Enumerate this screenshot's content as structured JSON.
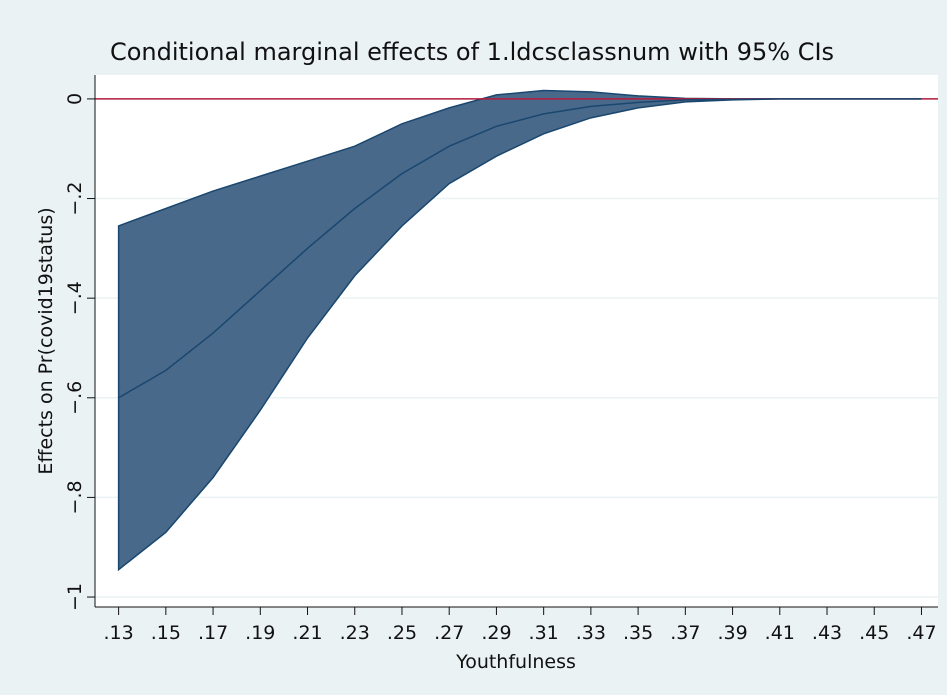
{
  "chart_data": {
    "type": "line",
    "title": "Conditional marginal effects of 1.ldcsclassnum with 95% CIs",
    "xlabel": "Youthfulness",
    "ylabel": "Effects on Pr(covid19status)",
    "x": [
      0.13,
      0.15,
      0.17,
      0.19,
      0.21,
      0.23,
      0.25,
      0.27,
      0.29,
      0.31,
      0.33,
      0.35,
      0.37,
      0.39,
      0.41,
      0.43,
      0.45,
      0.47
    ],
    "values": [
      -0.6,
      -0.545,
      -0.47,
      -0.385,
      -0.3,
      -0.22,
      -0.15,
      -0.095,
      -0.055,
      -0.03,
      -0.015,
      -0.007,
      -0.002,
      -0.001,
      0,
      0,
      0,
      0
    ],
    "upper": [
      -0.255,
      -0.22,
      -0.185,
      -0.155,
      -0.125,
      -0.095,
      -0.05,
      -0.018,
      0.008,
      0.017,
      0.014,
      0.006,
      0.001,
      0,
      0,
      0,
      0,
      0
    ],
    "lower": [
      -0.945,
      -0.87,
      -0.76,
      -0.625,
      -0.48,
      -0.355,
      -0.255,
      -0.17,
      -0.115,
      -0.07,
      -0.038,
      -0.018,
      -0.006,
      -0.002,
      0,
      0,
      0,
      0
    ],
    "color": "#1a476f",
    "band_color": "#49698a",
    "hline": 0,
    "hline_color": "#b31b3c",
    "xlim": [
      0.12,
      0.477
    ],
    "ylim": [
      -1.02,
      0.048
    ],
    "xticks": [
      {
        "value": 0.13,
        "label": ".13"
      },
      {
        "value": 0.15,
        "label": ".15"
      },
      {
        "value": 0.17,
        "label": ".17"
      },
      {
        "value": 0.19,
        "label": ".19"
      },
      {
        "value": 0.21,
        "label": ".21"
      },
      {
        "value": 0.23,
        "label": ".23"
      },
      {
        "value": 0.25,
        "label": ".25"
      },
      {
        "value": 0.27,
        "label": ".27"
      },
      {
        "value": 0.29,
        "label": ".29"
      },
      {
        "value": 0.31,
        "label": ".31"
      },
      {
        "value": 0.33,
        "label": ".33"
      },
      {
        "value": 0.35,
        "label": ".35"
      },
      {
        "value": 0.37,
        "label": ".37"
      },
      {
        "value": 0.39,
        "label": ".39"
      },
      {
        "value": 0.41,
        "label": ".41"
      },
      {
        "value": 0.43,
        "label": ".43"
      },
      {
        "value": 0.45,
        "label": ".45"
      },
      {
        "value": 0.47,
        "label": ".47"
      }
    ],
    "yticks": [
      0,
      {
        "value": -0.2,
        "label": "−.2"
      },
      {
        "value": -0.4,
        "label": "−.4"
      },
      {
        "value": -0.6,
        "label": "−.6"
      },
      {
        "value": -0.8,
        "label": "−.8"
      },
      {
        "value": -1,
        "label": "−1"
      }
    ],
    "grid": true
  }
}
